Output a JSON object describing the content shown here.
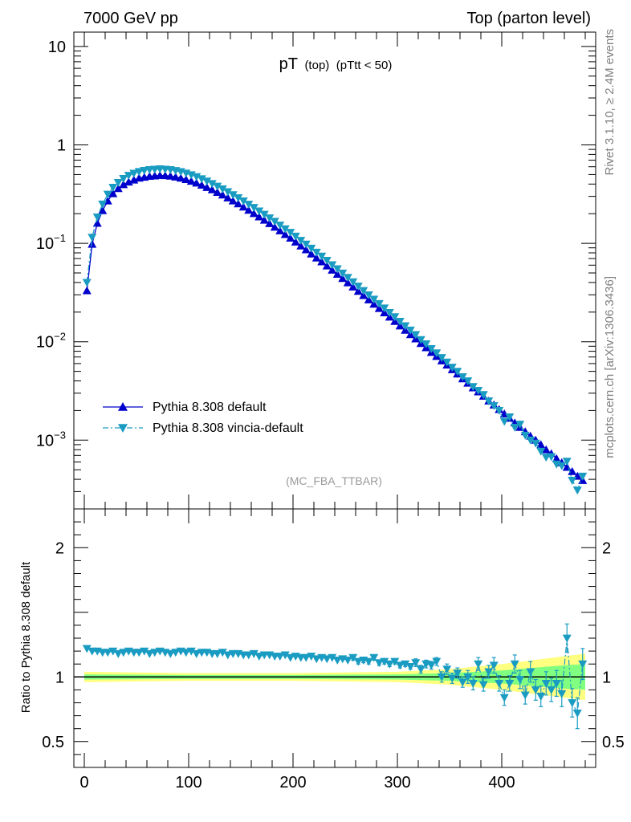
{
  "header": {
    "left": "7000 GeV pp",
    "right": "Top (parton level)"
  },
  "side_labels": {
    "rivet": "Rivet 3.1.10, ≥ 2.4M events",
    "mcplots": "mcplots.cern.ch [arXiv:1306.3436]"
  },
  "watermark": "(MC_FBA_TTBAR)",
  "chart_data": [
    {
      "type": "line",
      "title_main": "pT",
      "title_sub1": "(top)",
      "title_sub2": "(pTtt < 50)",
      "xlabel": "",
      "ylabel": "",
      "xlim": [
        -10,
        490
      ],
      "ylim": [
        0.0002,
        14
      ],
      "yscale": "log",
      "y_ticks": [
        {
          "value": 10,
          "label": "10"
        },
        {
          "value": 1,
          "label": "1"
        },
        {
          "value": 0.1,
          "base": "10",
          "exp": "−1"
        },
        {
          "value": 0.01,
          "base": "10",
          "exp": "−2"
        },
        {
          "value": 0.001,
          "base": "10",
          "exp": "−3"
        }
      ],
      "legend": {
        "position": "bottom-left"
      },
      "series": [
        {
          "name": "Pythia 8.308 default",
          "color": "#0000cc",
          "marker": "triangle-up",
          "line": "solid",
          "x": [
            2.5,
            7.5,
            12.5,
            17.5,
            22.5,
            27.5,
            32.5,
            37.5,
            42.5,
            47.5,
            52.5,
            57.5,
            62.5,
            67.5,
            72.5,
            77.5,
            82.5,
            87.5,
            92.5,
            97.5,
            102.5,
            107.5,
            112.5,
            117.5,
            122.5,
            127.5,
            132.5,
            137.5,
            142.5,
            147.5,
            152.5,
            157.5,
            162.5,
            167.5,
            172.5,
            177.5,
            182.5,
            187.5,
            192.5,
            197.5,
            202.5,
            207.5,
            212.5,
            217.5,
            222.5,
            227.5,
            232.5,
            237.5,
            242.5,
            247.5,
            252.5,
            257.5,
            262.5,
            267.5,
            272.5,
            277.5,
            282.5,
            287.5,
            292.5,
            297.5,
            302.5,
            307.5,
            312.5,
            317.5,
            322.5,
            327.5,
            332.5,
            337.5,
            342.5,
            347.5,
            352.5,
            357.5,
            362.5,
            367.5,
            372.5,
            377.5,
            382.5,
            387.5,
            392.5,
            397.5,
            402.5,
            407.5,
            412.5,
            417.5,
            422.5,
            427.5,
            432.5,
            437.5,
            442.5,
            447.5,
            452.5,
            457.5,
            462.5,
            467.5,
            472.5,
            477.5
          ],
          "y": [
            0.033,
            0.098,
            0.16,
            0.215,
            0.27,
            0.32,
            0.36,
            0.395,
            0.42,
            0.44,
            0.46,
            0.47,
            0.48,
            0.485,
            0.49,
            0.488,
            0.482,
            0.472,
            0.46,
            0.445,
            0.428,
            0.41,
            0.39,
            0.37,
            0.35,
            0.33,
            0.31,
            0.29,
            0.27,
            0.252,
            0.234,
            0.217,
            0.201,
            0.186,
            0.172,
            0.159,
            0.146,
            0.134,
            0.123,
            0.113,
            0.103,
            0.094,
            0.086,
            0.078,
            0.071,
            0.065,
            0.059,
            0.0535,
            0.0485,
            0.044,
            0.0398,
            0.036,
            0.0326,
            0.0295,
            0.0267,
            0.0241,
            0.0218,
            0.0197,
            0.0178,
            0.0161,
            0.0145,
            0.0131,
            0.0118,
            0.0107,
            0.0096,
            0.0087,
            0.0078,
            0.0071,
            0.0064,
            0.0058,
            0.0052,
            0.0047,
            0.0042,
            0.0038,
            0.0034,
            0.0031,
            0.0028,
            0.0025,
            0.00228,
            0.00205,
            0.00185,
            0.00167,
            0.0015,
            0.00135,
            0.00122,
            0.0011,
            0.001,
            0.0009,
            0.0008,
            0.00073,
            0.00065,
            0.00059,
            0.00053,
            0.00048,
            0.00043,
            0.00039
          ]
        },
        {
          "name": "Pythia 8.308 vincia-default",
          "color": "#1a9cc2",
          "marker": "triangle-down",
          "line": "dash-dot",
          "x": [
            2.5,
            7.5,
            12.5,
            17.5,
            22.5,
            27.5,
            32.5,
            37.5,
            42.5,
            47.5,
            52.5,
            57.5,
            62.5,
            67.5,
            72.5,
            77.5,
            82.5,
            87.5,
            92.5,
            97.5,
            102.5,
            107.5,
            112.5,
            117.5,
            122.5,
            127.5,
            132.5,
            137.5,
            142.5,
            147.5,
            152.5,
            157.5,
            162.5,
            167.5,
            172.5,
            177.5,
            182.5,
            187.5,
            192.5,
            197.5,
            202.5,
            207.5,
            212.5,
            217.5,
            222.5,
            227.5,
            232.5,
            237.5,
            242.5,
            247.5,
            252.5,
            257.5,
            262.5,
            267.5,
            272.5,
            277.5,
            282.5,
            287.5,
            292.5,
            297.5,
            302.5,
            307.5,
            312.5,
            317.5,
            322.5,
            327.5,
            332.5,
            337.5,
            342.5,
            347.5,
            352.5,
            357.5,
            362.5,
            367.5,
            372.5,
            377.5,
            382.5,
            387.5,
            392.5,
            397.5,
            402.5,
            407.5,
            412.5,
            417.5,
            422.5,
            427.5,
            432.5,
            437.5,
            442.5,
            447.5,
            452.5,
            457.5,
            462.5,
            467.5,
            472.5,
            477.5
          ],
          "y": [
            0.04,
            0.115,
            0.185,
            0.25,
            0.315,
            0.37,
            0.415,
            0.455,
            0.49,
            0.515,
            0.535,
            0.55,
            0.56,
            0.565,
            0.57,
            0.565,
            0.56,
            0.548,
            0.534,
            0.516,
            0.497,
            0.475,
            0.452,
            0.428,
            0.404,
            0.38,
            0.357,
            0.334,
            0.311,
            0.29,
            0.269,
            0.249,
            0.231,
            0.213,
            0.197,
            0.181,
            0.167,
            0.153,
            0.14,
            0.129,
            0.118,
            0.107,
            0.098,
            0.089,
            0.081,
            0.074,
            0.067,
            0.0605,
            0.055,
            0.0497,
            0.045,
            0.0406,
            0.0367,
            0.0331,
            0.0299,
            0.027,
            0.0244,
            0.022,
            0.0198,
            0.0179,
            0.0161,
            0.0145,
            0.0131,
            0.0118,
            0.0105,
            0.0095,
            0.0085,
            0.0077,
            0.0069,
            0.0062,
            0.0055,
            0.005,
            0.0044,
            0.004,
            0.0035,
            0.0032,
            0.0029,
            0.0025,
            0.00224,
            0.002,
            0.00155,
            0.00172,
            0.00135,
            0.00145,
            0.00112,
            0.001,
            0.00093,
            0.00077,
            0.00067,
            0.00068,
            0.00057,
            0.00055,
            0.00061,
            0.00039,
            0.00031,
            0.00043
          ]
        }
      ]
    },
    {
      "type": "line",
      "title": "",
      "xlabel": "",
      "ylabel": "Ratio to Pythia 8.308 default",
      "xlim": [
        -10,
        490
      ],
      "ylim": [
        0.3,
        2.3
      ],
      "x_ticks": [
        0,
        100,
        200,
        300,
        400
      ],
      "y_ticks": [
        0.5,
        1,
        2
      ],
      "reference_line": 1,
      "band_color_outer": "#ffff80",
      "band_color_inner": "#80ff80",
      "band": {
        "x": [
          0,
          100,
          200,
          300,
          350,
          400,
          430,
          460,
          480
        ],
        "outer": [
          0.04,
          0.03,
          0.03,
          0.04,
          0.06,
          0.1,
          0.13,
          0.16,
          0.18
        ],
        "inner": [
          0.02,
          0.015,
          0.015,
          0.02,
          0.03,
          0.05,
          0.07,
          0.09,
          0.1
        ]
      },
      "series": [
        {
          "name": "Pythia 8.308 vincia-default",
          "color": "#1a9cc2",
          "marker": "triangle-down",
          "x": [
            2.5,
            7.5,
            12.5,
            17.5,
            22.5,
            27.5,
            32.5,
            37.5,
            42.5,
            47.5,
            52.5,
            57.5,
            62.5,
            67.5,
            72.5,
            77.5,
            82.5,
            87.5,
            92.5,
            97.5,
            102.5,
            107.5,
            112.5,
            117.5,
            122.5,
            127.5,
            132.5,
            137.5,
            142.5,
            147.5,
            152.5,
            157.5,
            162.5,
            167.5,
            172.5,
            177.5,
            182.5,
            187.5,
            192.5,
            197.5,
            202.5,
            207.5,
            212.5,
            217.5,
            222.5,
            227.5,
            232.5,
            237.5,
            242.5,
            247.5,
            252.5,
            257.5,
            262.5,
            267.5,
            272.5,
            277.5,
            282.5,
            287.5,
            292.5,
            297.5,
            302.5,
            307.5,
            312.5,
            317.5,
            322.5,
            327.5,
            332.5,
            337.5,
            342.5,
            347.5,
            352.5,
            357.5,
            362.5,
            367.5,
            372.5,
            377.5,
            382.5,
            387.5,
            392.5,
            397.5,
            402.5,
            407.5,
            412.5,
            417.5,
            422.5,
            427.5,
            432.5,
            437.5,
            442.5,
            447.5,
            452.5,
            457.5,
            462.5,
            467.5,
            472.5,
            477.5
          ],
          "y": [
            1.22,
            1.2,
            1.2,
            1.19,
            1.19,
            1.2,
            1.18,
            1.19,
            1.2,
            1.19,
            1.19,
            1.2,
            1.18,
            1.19,
            1.2,
            1.19,
            1.18,
            1.19,
            1.2,
            1.19,
            1.2,
            1.18,
            1.19,
            1.19,
            1.18,
            1.18,
            1.19,
            1.17,
            1.18,
            1.18,
            1.17,
            1.17,
            1.18,
            1.16,
            1.17,
            1.17,
            1.16,
            1.16,
            1.17,
            1.15,
            1.16,
            1.15,
            1.15,
            1.16,
            1.14,
            1.15,
            1.14,
            1.15,
            1.13,
            1.14,
            1.13,
            1.15,
            1.12,
            1.13,
            1.12,
            1.15,
            1.11,
            1.12,
            1.1,
            1.12,
            1.09,
            1.1,
            1.08,
            1.11,
            1.06,
            1.1,
            1.09,
            1.12,
            1.0,
            1.06,
            0.99,
            1.03,
            0.96,
            1.0,
            0.95,
            1.1,
            0.94,
            1.04,
            1.09,
            0.95,
            0.84,
            0.95,
            1.1,
            0.98,
            0.86,
            1.04,
            0.9,
            0.85,
            0.95,
            0.9,
            0.95,
            0.87,
            1.3,
            0.8,
            0.72,
            1.1
          ],
          "err": [
            0.01,
            0.01,
            0.01,
            0.01,
            0.01,
            0.01,
            0.01,
            0.01,
            0.01,
            0.01,
            0.01,
            0.01,
            0.01,
            0.01,
            0.01,
            0.01,
            0.01,
            0.01,
            0.01,
            0.01,
            0.01,
            0.01,
            0.01,
            0.01,
            0.01,
            0.01,
            0.01,
            0.01,
            0.01,
            0.01,
            0.01,
            0.01,
            0.01,
            0.01,
            0.01,
            0.01,
            0.01,
            0.01,
            0.01,
            0.01,
            0.01,
            0.01,
            0.01,
            0.01,
            0.01,
            0.01,
            0.01,
            0.01,
            0.01,
            0.01,
            0.01,
            0.02,
            0.02,
            0.02,
            0.02,
            0.02,
            0.02,
            0.02,
            0.02,
            0.02,
            0.02,
            0.02,
            0.02,
            0.03,
            0.03,
            0.03,
            0.03,
            0.03,
            0.04,
            0.04,
            0.04,
            0.04,
            0.04,
            0.05,
            0.05,
            0.05,
            0.05,
            0.05,
            0.06,
            0.06,
            0.06,
            0.06,
            0.07,
            0.07,
            0.07,
            0.08,
            0.08,
            0.08,
            0.09,
            0.09,
            0.1,
            0.1,
            0.11,
            0.11,
            0.12,
            0.12
          ]
        }
      ]
    }
  ]
}
